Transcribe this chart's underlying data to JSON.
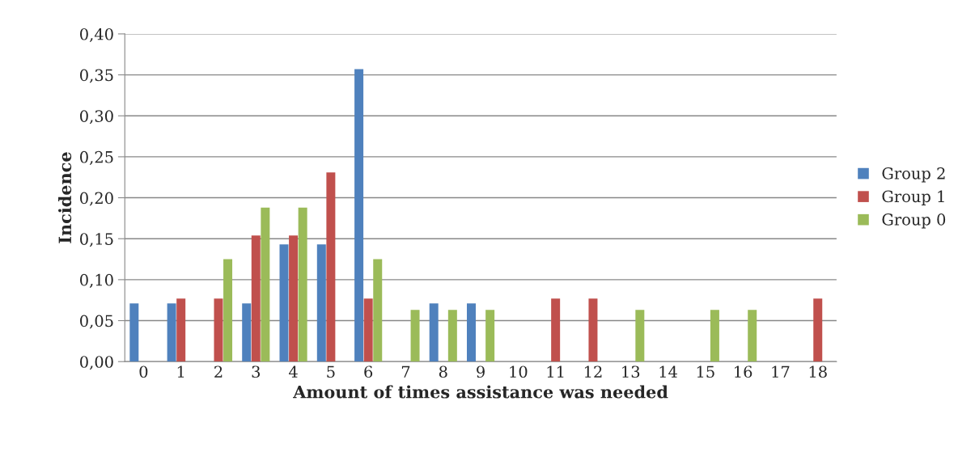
{
  "chart_data": {
    "type": "bar",
    "xlabel": "Amount of times assistance was needed",
    "ylabel": "Incidence",
    "categories": [
      "0",
      "1",
      "2",
      "3",
      "4",
      "5",
      "6",
      "7",
      "8",
      "9",
      "10",
      "11",
      "12",
      "13",
      "14",
      "15",
      "16",
      "17",
      "18"
    ],
    "series": [
      {
        "name": "Group 2",
        "color": "#4f81bd",
        "values": [
          0.071,
          0.071,
          null,
          0.071,
          0.143,
          0.143,
          0.357,
          null,
          0.071,
          0.071,
          null,
          null,
          null,
          null,
          null,
          null,
          null,
          null,
          null
        ]
      },
      {
        "name": "Group 1",
        "color": "#c0504d",
        "values": [
          null,
          0.077,
          0.077,
          0.154,
          0.154,
          0.231,
          0.077,
          null,
          null,
          null,
          null,
          0.077,
          0.077,
          null,
          null,
          null,
          null,
          null,
          0.077
        ]
      },
      {
        "name": "Group 0",
        "color": "#9bbb59",
        "values": [
          null,
          null,
          0.125,
          0.188,
          0.188,
          null,
          0.125,
          0.063,
          0.063,
          0.063,
          null,
          null,
          null,
          0.063,
          null,
          0.063,
          0.063,
          null,
          null
        ]
      }
    ],
    "ylim": [
      0,
      0.4
    ],
    "yticks": [
      {
        "value": 0,
        "label": "0,00"
      },
      {
        "value": 0.05,
        "label": "0,05"
      },
      {
        "value": 0.1,
        "label": "0,10"
      },
      {
        "value": 0.15,
        "label": "0,15"
      },
      {
        "value": 0.2,
        "label": "0,20"
      },
      {
        "value": 0.25,
        "label": "0,25"
      },
      {
        "value": 0.3,
        "label": "0,30"
      },
      {
        "value": 0.35,
        "label": "0,35"
      },
      {
        "value": 0.4,
        "label": "0,40"
      }
    ],
    "grid": "y",
    "legend": "right"
  }
}
